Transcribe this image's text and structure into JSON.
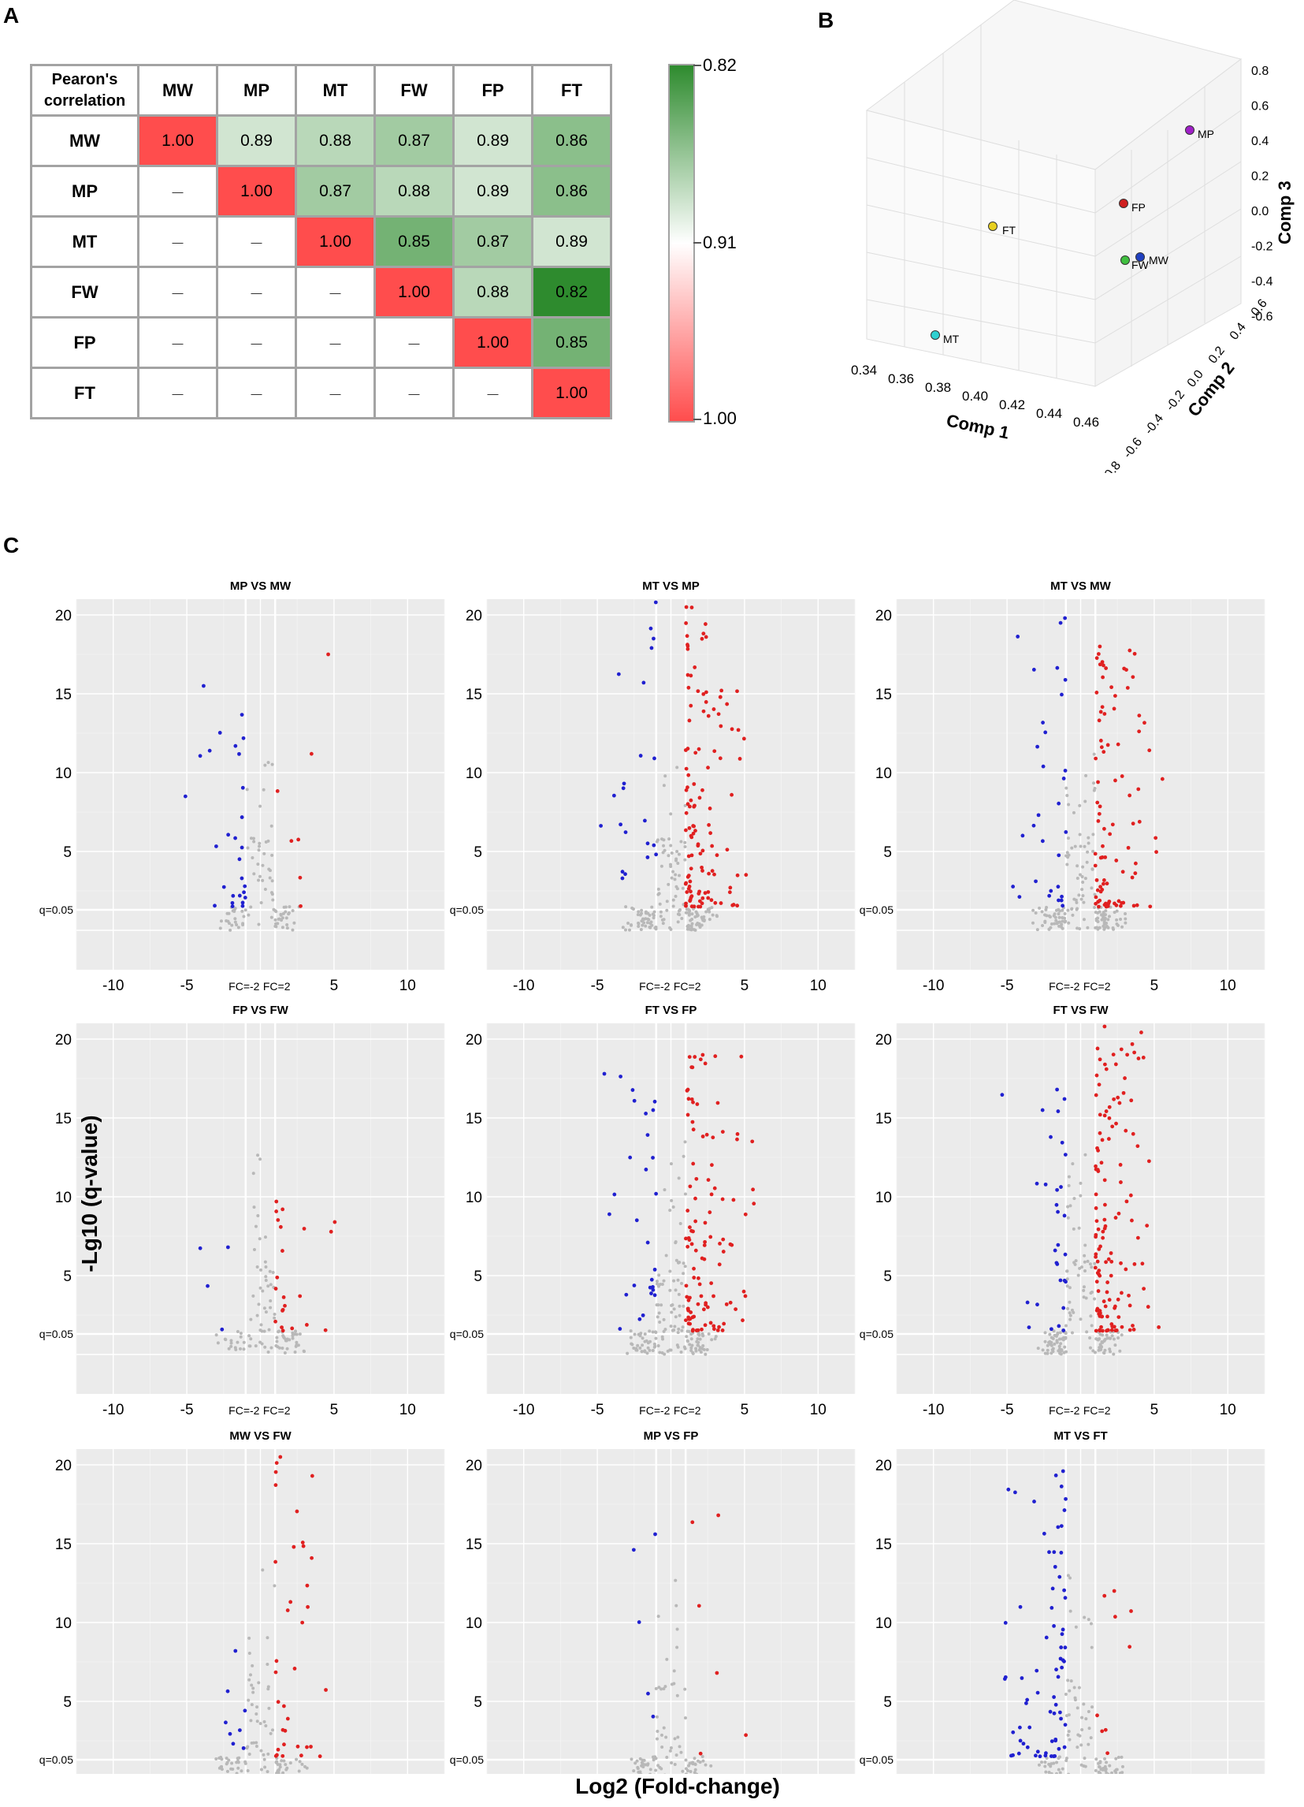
{
  "panel_letters": {
    "a": "A",
    "b": "B",
    "c": "C"
  },
  "chart_data": [
    {
      "type": "heatmap",
      "panel": "A",
      "corner_label_line1": "Pearon's",
      "corner_label_line2": "correlation",
      "columns": [
        "MW",
        "MP",
        "MT",
        "FW",
        "FP",
        "FT"
      ],
      "rows": [
        "MW",
        "MP",
        "MT",
        "FW",
        "FP",
        "FT"
      ],
      "lower_placeholder": "—",
      "cells": [
        [
          "1.00",
          "0.89",
          "0.88",
          "0.87",
          "0.89",
          "0.86"
        ],
        [
          "",
          "1.00",
          "0.87",
          "0.88",
          "0.89",
          "0.86"
        ],
        [
          "",
          "",
          "1.00",
          "0.85",
          "0.87",
          "0.89"
        ],
        [
          "",
          "",
          "",
          "1.00",
          "0.88",
          "0.82"
        ],
        [
          "",
          "",
          "",
          "",
          "1.00",
          "0.85"
        ],
        [
          "",
          "",
          "",
          "",
          "",
          "1.00"
        ]
      ],
      "colorbar": {
        "top": "0.82",
        "mid": "0.91",
        "bottom": "1.00"
      },
      "colors": {
        "high": "#2e8b2e",
        "mid": "#ffffff",
        "low": "#ff4d4d"
      }
    },
    {
      "type": "scatter",
      "panel": "B",
      "xlabel": "Comp 1",
      "ylabel": "Comp 2",
      "zlabel": "Comp 3",
      "x_ticks": [
        "0.34",
        "0.36",
        "0.38",
        "0.40",
        "0.42",
        "0.44",
        "0.46"
      ],
      "y_ticks": [
        "0.6",
        "0.4",
        "0.2",
        "0.0",
        "-0.2",
        "-0.4",
        "-0.6",
        "-0.8"
      ],
      "z_ticks": [
        "0.8",
        "0.6",
        "0.4",
        "0.2",
        "0.0",
        "-0.2",
        "-0.4",
        "-0.6"
      ],
      "points": [
        {
          "label": "MP",
          "color": "#a020c8"
        },
        {
          "label": "FP",
          "color": "#d02020"
        },
        {
          "label": "FT",
          "color": "#e8d020"
        },
        {
          "label": "FW",
          "color": "#40c040"
        },
        {
          "label": "MW",
          "color": "#2040c0"
        },
        {
          "label": "MT",
          "color": "#30d0d0"
        }
      ]
    },
    {
      "type": "scatter",
      "panel": "C",
      "subtype": "volcano",
      "xlabel": "Log2 (Fold-change)",
      "ylabel": "-Lg10 (q-value)",
      "x_ticks": [
        "-10",
        "-5",
        "5",
        "10"
      ],
      "y_ticks": [
        "5",
        "10",
        "15",
        "20"
      ],
      "xlim": [
        -12.5,
        12.5
      ],
      "ylim": [
        -2.5,
        21
      ],
      "threshold_label": "q=0.05",
      "fc_neg_label": "FC=-2",
      "fc_pos_label": "FC=2",
      "colors": {
        "up": "#e02020",
        "down": "#2020d0",
        "ns": "#b8b8b8"
      },
      "panels": [
        {
          "title": "MP VS MW",
          "up": 7,
          "down": 28,
          "ns": 90,
          "up_max": 17.5,
          "down_max": 15.5
        },
        {
          "title": "MT VS MP",
          "up": 120,
          "down": 22,
          "ns": 160,
          "up_max": 20.5,
          "down_max": 20.8
        },
        {
          "title": "MT VS MW",
          "up": 90,
          "down": 30,
          "ns": 150,
          "up_max": 18,
          "down_max": 19.8
        },
        {
          "title": "FP VS FW",
          "up": 22,
          "down": 4,
          "ns": 100,
          "up_max": 9.7,
          "down_max": 6.8
        },
        {
          "title": "FT VS FP",
          "up": 110,
          "down": 28,
          "ns": 150,
          "up_max": 19,
          "down_max": 17.8
        },
        {
          "title": "FT VS FW",
          "up": 130,
          "down": 30,
          "ns": 150,
          "up_max": 20.8,
          "down_max": 16.8
        },
        {
          "title": "MW VS FW",
          "up": 35,
          "down": 8,
          "ns": 110,
          "up_max": 20.5,
          "down_max": 8.2
        },
        {
          "title": "MP VS FP",
          "up": 6,
          "down": 5,
          "ns": 110,
          "up_max": 16.8,
          "down_max": 15.6
        },
        {
          "title": "MT VS FT",
          "up": 9,
          "down": 70,
          "ns": 110,
          "up_max": 12,
          "down_max": 19.6
        }
      ]
    }
  ]
}
